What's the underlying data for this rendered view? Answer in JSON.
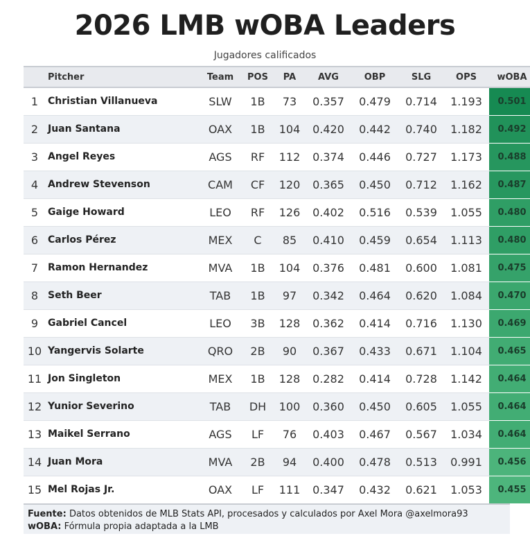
{
  "title": "2026 LMB wOBA Leaders",
  "subtitle": "Jugadores calificados",
  "columns": [
    "",
    "Pitcher",
    "Team",
    "POS",
    "PA",
    "AVG",
    "OBP",
    "SLG",
    "OPS",
    "wOBA"
  ],
  "rows": [
    {
      "rank": "1",
      "name": "Christian Villanueva",
      "team": "SLW",
      "pos": "1B",
      "pa": "73",
      "avg": "0.357",
      "obp": "0.479",
      "slg": "0.714",
      "ops": "1.193",
      "woba": "0.501"
    },
    {
      "rank": "2",
      "name": "Juan Santana",
      "team": "OAX",
      "pos": "1B",
      "pa": "104",
      "avg": "0.420",
      "obp": "0.442",
      "slg": "0.740",
      "ops": "1.182",
      "woba": "0.492"
    },
    {
      "rank": "3",
      "name": "Angel Reyes",
      "team": "AGS",
      "pos": "RF",
      "pa": "112",
      "avg": "0.374",
      "obp": "0.446",
      "slg": "0.727",
      "ops": "1.173",
      "woba": "0.488"
    },
    {
      "rank": "4",
      "name": "Andrew Stevenson",
      "team": "CAM",
      "pos": "CF",
      "pa": "120",
      "avg": "0.365",
      "obp": "0.450",
      "slg": "0.712",
      "ops": "1.162",
      "woba": "0.487"
    },
    {
      "rank": "5",
      "name": "Gaige Howard",
      "team": "LEO",
      "pos": "RF",
      "pa": "126",
      "avg": "0.402",
      "obp": "0.516",
      "slg": "0.539",
      "ops": "1.055",
      "woba": "0.480"
    },
    {
      "rank": "6",
      "name": "Carlos Pérez",
      "team": "MEX",
      "pos": "C",
      "pa": "85",
      "avg": "0.410",
      "obp": "0.459",
      "slg": "0.654",
      "ops": "1.113",
      "woba": "0.480"
    },
    {
      "rank": "7",
      "name": "Ramon Hernandez",
      "team": "MVA",
      "pos": "1B",
      "pa": "104",
      "avg": "0.376",
      "obp": "0.481",
      "slg": "0.600",
      "ops": "1.081",
      "woba": "0.475"
    },
    {
      "rank": "8",
      "name": "Seth Beer",
      "team": "TAB",
      "pos": "1B",
      "pa": "97",
      "avg": "0.342",
      "obp": "0.464",
      "slg": "0.620",
      "ops": "1.084",
      "woba": "0.470"
    },
    {
      "rank": "9",
      "name": "Gabriel Cancel",
      "team": "LEO",
      "pos": "3B",
      "pa": "128",
      "avg": "0.362",
      "obp": "0.414",
      "slg": "0.716",
      "ops": "1.130",
      "woba": "0.469"
    },
    {
      "rank": "10",
      "name": "Yangervis Solarte",
      "team": "QRO",
      "pos": "2B",
      "pa": "90",
      "avg": "0.367",
      "obp": "0.433",
      "slg": "0.671",
      "ops": "1.104",
      "woba": "0.465"
    },
    {
      "rank": "11",
      "name": "Jon Singleton",
      "team": "MEX",
      "pos": "1B",
      "pa": "128",
      "avg": "0.282",
      "obp": "0.414",
      "slg": "0.728",
      "ops": "1.142",
      "woba": "0.464"
    },
    {
      "rank": "12",
      "name": "Yunior Severino",
      "team": "TAB",
      "pos": "DH",
      "pa": "100",
      "avg": "0.360",
      "obp": "0.450",
      "slg": "0.605",
      "ops": "1.055",
      "woba": "0.464"
    },
    {
      "rank": "13",
      "name": "Maikel Serrano",
      "team": "AGS",
      "pos": "LF",
      "pa": "76",
      "avg": "0.403",
      "obp": "0.467",
      "slg": "0.567",
      "ops": "1.034",
      "woba": "0.464"
    },
    {
      "rank": "14",
      "name": "Juan Mora",
      "team": "MVA",
      "pos": "2B",
      "pa": "94",
      "avg": "0.400",
      "obp": "0.478",
      "slg": "0.513",
      "ops": "0.991",
      "woba": "0.456"
    },
    {
      "rank": "15",
      "name": "Mel Rojas Jr.",
      "team": "OAX",
      "pos": "LF",
      "pa": "111",
      "avg": "0.347",
      "obp": "0.432",
      "slg": "0.621",
      "ops": "1.053",
      "woba": "0.455"
    }
  ],
  "woba_color_scale": {
    "low": "#4db57c",
    "high": "#168a52"
  },
  "footer": {
    "source_label": "Fuente:",
    "source_text": "Datos obtenidos de MLB Stats API, procesados y calculados por Axel Mora @axelmora93",
    "woba_label": "wOBA:",
    "woba_text": "Fórmula propia adaptada a la LMB"
  },
  "chart_data": {
    "type": "table",
    "title": "2026 LMB wOBA Leaders",
    "subtitle": "Jugadores calificados",
    "columns": [
      "",
      "Pitcher",
      "Team",
      "POS",
      "PA",
      "AVG",
      "OBP",
      "SLG",
      "OPS",
      "wOBA"
    ],
    "values": [
      [
        1,
        "Christian Villanueva",
        "SLW",
        "1B",
        73,
        0.357,
        0.479,
        0.714,
        1.193,
        0.501
      ],
      [
        2,
        "Juan Santana",
        "OAX",
        "1B",
        104,
        0.42,
        0.442,
        0.74,
        1.182,
        0.492
      ],
      [
        3,
        "Angel Reyes",
        "AGS",
        "RF",
        112,
        0.374,
        0.446,
        0.727,
        1.173,
        0.488
      ],
      [
        4,
        "Andrew Stevenson",
        "CAM",
        "CF",
        120,
        0.365,
        0.45,
        0.712,
        1.162,
        0.487
      ],
      [
        5,
        "Gaige Howard",
        "LEO",
        "RF",
        126,
        0.402,
        0.516,
        0.539,
        1.055,
        0.48
      ],
      [
        6,
        "Carlos Pérez",
        "MEX",
        "C",
        85,
        0.41,
        0.459,
        0.654,
        1.113,
        0.48
      ],
      [
        7,
        "Ramon Hernandez",
        "MVA",
        "1B",
        104,
        0.376,
        0.481,
        0.6,
        1.081,
        0.475
      ],
      [
        8,
        "Seth Beer",
        "TAB",
        "1B",
        97,
        0.342,
        0.464,
        0.62,
        1.084,
        0.47
      ],
      [
        9,
        "Gabriel Cancel",
        "LEO",
        "3B",
        128,
        0.362,
        0.414,
        0.716,
        1.13,
        0.469
      ],
      [
        10,
        "Yangervis Solarte",
        "QRO",
        "2B",
        90,
        0.367,
        0.433,
        0.671,
        1.104,
        0.465
      ],
      [
        11,
        "Jon Singleton",
        "MEX",
        "1B",
        128,
        0.282,
        0.414,
        0.728,
        1.142,
        0.464
      ],
      [
        12,
        "Yunior Severino",
        "TAB",
        "DH",
        100,
        0.36,
        0.45,
        0.605,
        1.055,
        0.464
      ],
      [
        13,
        "Maikel Serrano",
        "AGS",
        "LF",
        76,
        0.403,
        0.467,
        0.567,
        1.034,
        0.464
      ],
      [
        14,
        "Juan Mora",
        "MVA",
        "2B",
        94,
        0.4,
        0.478,
        0.513,
        0.991,
        0.456
      ],
      [
        15,
        "Mel Rojas Jr.",
        "OAX",
        "LF",
        111,
        0.347,
        0.432,
        0.621,
        1.053,
        0.455
      ]
    ]
  }
}
